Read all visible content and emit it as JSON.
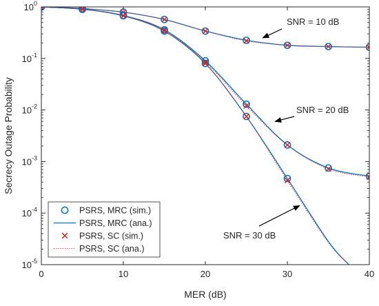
{
  "chart_data": {
    "type": "line",
    "title": "",
    "xlabel": "MER (dB)",
    "ylabel": "Secrecy Outage Probability",
    "xlim": [
      0,
      40
    ],
    "ylim": [
      1e-05,
      1
    ],
    "yscale": "log",
    "grid": false,
    "legend_position": "bottom-left",
    "x_ticks": [
      0,
      10,
      20,
      30,
      40
    ],
    "x_tick_labels": [
      "0",
      "10",
      "20",
      "30",
      "40"
    ],
    "y_ticks": [
      1e-05,
      0.0001,
      0.001,
      0.01,
      0.1,
      1
    ],
    "y_tick_labels": [
      {
        "base": "10",
        "exp": "-5"
      },
      {
        "base": "10",
        "exp": "-4"
      },
      {
        "base": "10",
        "exp": "-3"
      },
      {
        "base": "10",
        "exp": "-2"
      },
      {
        "base": "10",
        "exp": "-1"
      },
      {
        "base": "10",
        "exp": "0"
      }
    ],
    "legend": [
      {
        "label": "PSRS, MRC (sim.)",
        "marker": "circle",
        "color": "#0072BD"
      },
      {
        "label": "PSRS, MRC (ana.)",
        "marker": "line",
        "color": "#0072BD"
      },
      {
        "label": "PSRS, SC (sim.)",
        "marker": "cross",
        "color": "#D62728"
      },
      {
        "label": "PSRS, SC (ana.)",
        "marker": "dotted",
        "color": "#D62728"
      }
    ],
    "annotations": [
      {
        "text": "SNR = 10 dB",
        "arrow_to": [
          27,
          0.25
        ]
      },
      {
        "text": "SNR = 20 dB",
        "arrow_to": [
          28.5,
          0.006
        ]
      },
      {
        "text": "SNR = 30 dB",
        "arrow_to": [
          31.5,
          0.00014
        ]
      }
    ],
    "series": [
      {
        "group": "SNR = 10 dB",
        "x": [
          0,
          5,
          10,
          15,
          20,
          25,
          30,
          35,
          40
        ],
        "mrc_sim": [
          1.0,
          0.93,
          0.79,
          0.57,
          0.34,
          0.225,
          0.18,
          0.17,
          0.165
        ],
        "mrc_ana": [
          1.0,
          0.93,
          0.79,
          0.57,
          0.34,
          0.225,
          0.18,
          0.17,
          0.165
        ],
        "sc_sim": [
          1.0,
          0.93,
          0.79,
          0.57,
          0.34,
          0.22,
          0.18,
          0.17,
          0.165
        ],
        "sc_ana": [
          1.0,
          0.93,
          0.79,
          0.57,
          0.34,
          0.22,
          0.18,
          0.17,
          0.165
        ]
      },
      {
        "group": "SNR = 20 dB",
        "x": [
          0,
          5,
          10,
          15,
          20,
          25,
          30,
          35,
          40
        ],
        "mrc_sim": [
          1.0,
          0.9,
          0.68,
          0.36,
          0.09,
          0.013,
          0.0021,
          0.00075,
          0.00052
        ],
        "mrc_ana": [
          1.0,
          0.9,
          0.68,
          0.36,
          0.09,
          0.013,
          0.0021,
          0.00075,
          0.00052
        ],
        "sc_sim": [
          1.0,
          0.9,
          0.68,
          0.36,
          0.085,
          0.012,
          0.0021,
          0.00072,
          0.0005
        ],
        "sc_ana": [
          1.0,
          0.9,
          0.68,
          0.36,
          0.085,
          0.012,
          0.0021,
          0.00072,
          0.0005
        ]
      },
      {
        "group": "SNR = 30 dB",
        "x": [
          0,
          5,
          10,
          15,
          20,
          25,
          30,
          35,
          37.5
        ],
        "mrc_sim": [
          1.0,
          0.9,
          0.67,
          0.34,
          0.08,
          0.0075,
          0.00047
        ],
        "mrc_ana": [
          1.0,
          0.9,
          0.67,
          0.34,
          0.08,
          0.0075,
          0.00047,
          2.8e-05,
          1e-05
        ],
        "sc_sim": [
          1.0,
          0.9,
          0.67,
          0.34,
          0.08,
          0.0075,
          0.00043
        ],
        "sc_ana": [
          1.0,
          0.9,
          0.67,
          0.34,
          0.08,
          0.0075,
          0.00043,
          2.7e-05,
          1e-05
        ]
      }
    ]
  }
}
